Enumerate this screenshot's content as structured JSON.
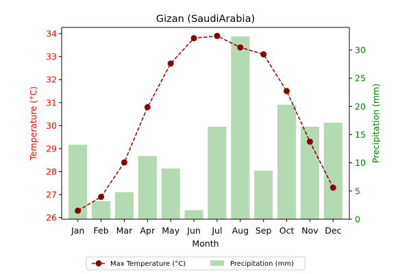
{
  "chart_data": {
    "type": "bar+line",
    "title": "Gizan (SaudiArabia)",
    "categories": [
      "Jan",
      "Feb",
      "Mar",
      "Apr",
      "May",
      "Jun",
      "Jul",
      "Aug",
      "Sep",
      "Oct",
      "Nov",
      "Dec"
    ],
    "xlabel": "Month",
    "series": [
      {
        "name": "Max Temperature (°C)",
        "type": "line",
        "axis": "left",
        "color": "#8b0000",
        "values": [
          26.3,
          26.9,
          28.4,
          30.8,
          32.7,
          33.8,
          33.9,
          33.4,
          33.1,
          31.5,
          29.3,
          27.3
        ]
      },
      {
        "name": "Precipitation (mm)",
        "type": "bar",
        "axis": "right",
        "color": "#b3dab3",
        "values": [
          13.2,
          3.2,
          4.8,
          11.2,
          9.0,
          1.6,
          16.4,
          32.4,
          8.6,
          20.3,
          16.4,
          17.1
        ]
      }
    ],
    "y_left": {
      "label": "Temperature (°C)",
      "ylim": [
        25.93,
        34.27
      ],
      "ticks": [
        "26",
        "27",
        "28",
        "29",
        "30",
        "31",
        "32",
        "33",
        "34"
      ],
      "tick_values": [
        26,
        27,
        28,
        29,
        30,
        31,
        32,
        33,
        34
      ],
      "color": "#ff0000"
    },
    "y_right": {
      "label": "Precipitation (mm)",
      "ylim": [
        0,
        34.0
      ],
      "ticks": [
        "0",
        "5",
        "10",
        "15",
        "20",
        "25",
        "30"
      ],
      "tick_values": [
        0,
        5,
        10,
        15,
        20,
        25,
        30
      ],
      "color": "#008000"
    },
    "legend": {
      "placement": "bottom-center",
      "ncol": 2,
      "entries": [
        "Max Temperature (°C)",
        "Precipitation (mm)"
      ]
    },
    "grid": false
  }
}
